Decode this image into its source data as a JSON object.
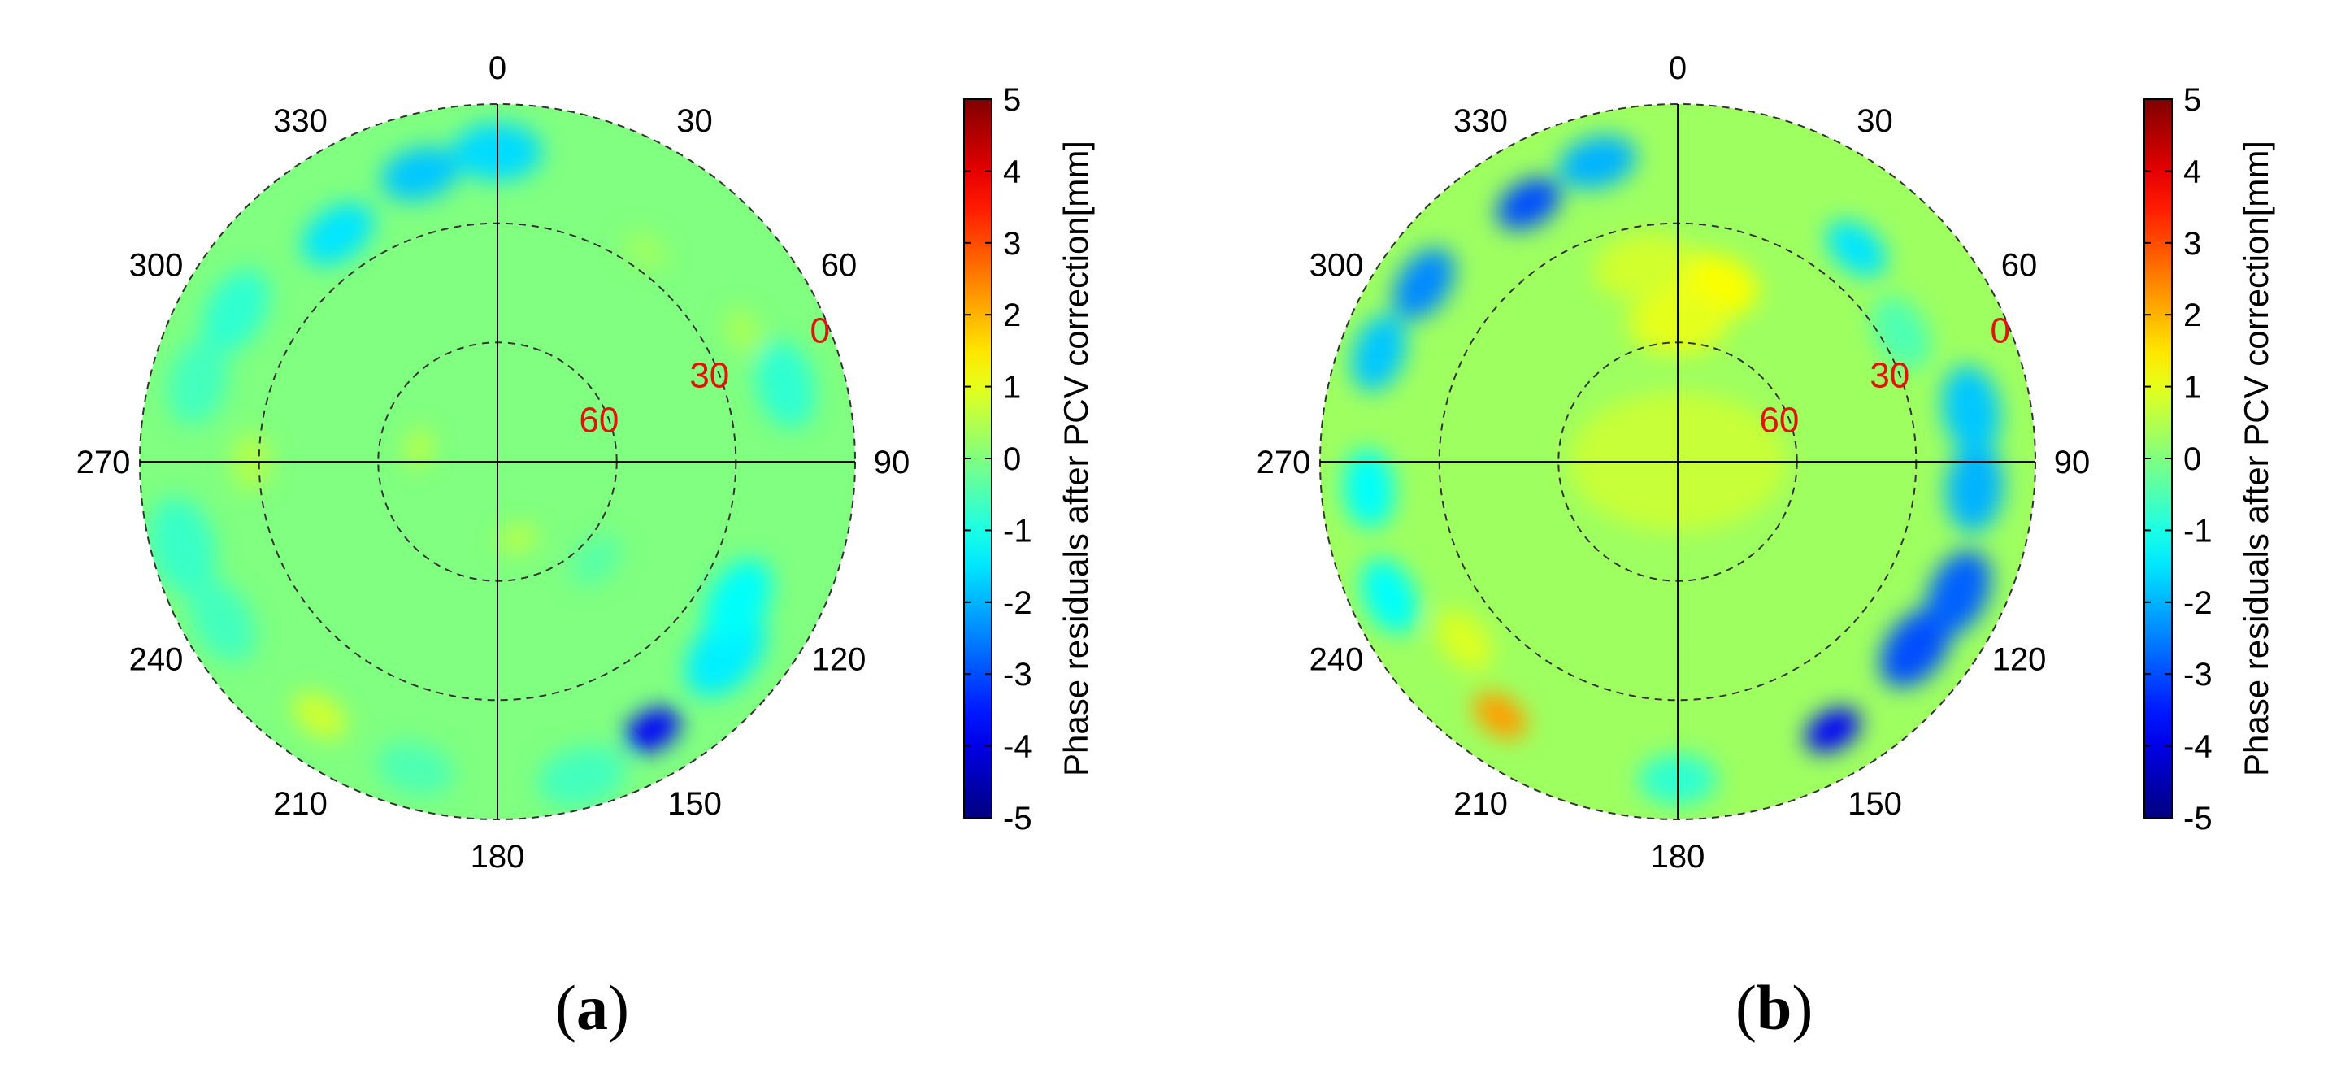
{
  "chart_data": [
    {
      "panel": "a",
      "panel_label_open": "(",
      "panel_label_letter": "a",
      "panel_label_close": ")",
      "type": "polar-contour",
      "azimuth_labels": [
        "0",
        "30",
        "60",
        "90",
        "120",
        "150",
        "180",
        "210",
        "240",
        "270",
        "300",
        "330"
      ],
      "elevation_labels": [
        "0",
        "30",
        "60"
      ],
      "elevation_rings_deg": [
        0,
        30,
        60
      ],
      "colorbar": {
        "label": "Phase residuals after PCV correction[mm]",
        "ticks": [
          "5",
          "4",
          "3",
          "2",
          "1",
          "0",
          "-1",
          "-2",
          "-3",
          "-4",
          "-5"
        ],
        "min": -5,
        "max": 5,
        "colormap": "jet"
      },
      "field_base_value": 0,
      "anomalies": [
        {
          "az": 0,
          "el": 12,
          "value": -1.6,
          "spread": 9
        },
        {
          "az": 345,
          "el": 15,
          "value": -1.8,
          "spread": 8
        },
        {
          "az": 325,
          "el": 20,
          "value": -1.5,
          "spread": 8
        },
        {
          "az": 300,
          "el": 14,
          "value": -0.8,
          "spread": 9
        },
        {
          "az": 285,
          "el": 12,
          "value": -0.6,
          "spread": 9
        },
        {
          "az": 255,
          "el": 8,
          "value": -0.7,
          "spread": 10
        },
        {
          "az": 240,
          "el": 10,
          "value": -0.6,
          "spread": 9
        },
        {
          "az": 215,
          "el": 12,
          "value": 0.8,
          "spread": 6
        },
        {
          "az": 195,
          "el": 10,
          "value": -0.5,
          "spread": 8
        },
        {
          "az": 165,
          "el": 8,
          "value": -0.6,
          "spread": 9
        },
        {
          "az": 150,
          "el": 12,
          "value": -3.8,
          "spread": 6
        },
        {
          "az": 130,
          "el": 15,
          "value": -1.4,
          "spread": 10
        },
        {
          "az": 120,
          "el": 20,
          "value": -1.2,
          "spread": 9
        },
        {
          "az": 75,
          "el": 15,
          "value": -0.8,
          "spread": 9
        },
        {
          "az": 62,
          "el": 20,
          "value": 0.4,
          "spread": 5
        },
        {
          "az": 35,
          "el": 25,
          "value": 0.3,
          "spread": 5
        },
        {
          "az": 270,
          "el": 28,
          "value": 0.5,
          "spread": 6
        },
        {
          "az": 280,
          "el": 70,
          "value": 0.6,
          "spread": 4
        },
        {
          "az": 165,
          "el": 70,
          "value": 0.6,
          "spread": 4
        },
        {
          "az": 135,
          "el": 55,
          "value": -0.4,
          "spread": 6
        }
      ]
    },
    {
      "panel": "b",
      "panel_label_open": "(",
      "panel_label_letter": "b",
      "panel_label_close": ")",
      "type": "polar-contour",
      "azimuth_labels": [
        "0",
        "30",
        "60",
        "90",
        "120",
        "150",
        "180",
        "210",
        "240",
        "270",
        "300",
        "330"
      ],
      "elevation_labels": [
        "0",
        "30",
        "60"
      ],
      "elevation_rings_deg": [
        0,
        30,
        60
      ],
      "colorbar": {
        "label": "Phase residuals after PCV correction[mm]",
        "ticks": [
          "5",
          "4",
          "3",
          "2",
          "1",
          "0",
          "-1",
          "-2",
          "-3",
          "-4",
          "-5"
        ],
        "min": -5,
        "max": 5,
        "colormap": "jet"
      },
      "field_base_value": 0.3,
      "anomalies": [
        {
          "az": 0,
          "el": 90,
          "value": 0.7,
          "spread": 22
        },
        {
          "az": 10,
          "el": 45,
          "value": 1.2,
          "spread": 10
        },
        {
          "az": 0,
          "el": 55,
          "value": 1.0,
          "spread": 10
        },
        {
          "az": 350,
          "el": 40,
          "value": 0.8,
          "spread": 10
        },
        {
          "az": 345,
          "el": 12,
          "value": -2.0,
          "spread": 8
        },
        {
          "az": 330,
          "el": 15,
          "value": -3.0,
          "spread": 7
        },
        {
          "az": 305,
          "el": 12,
          "value": -2.4,
          "spread": 8
        },
        {
          "az": 290,
          "el": 10,
          "value": -1.8,
          "spread": 8
        },
        {
          "az": 265,
          "el": 12,
          "value": -1.2,
          "spread": 8
        },
        {
          "az": 245,
          "el": 10,
          "value": -1.2,
          "spread": 8
        },
        {
          "az": 230,
          "el": 20,
          "value": 0.9,
          "spread": 7
        },
        {
          "az": 215,
          "el": 12,
          "value": 2.2,
          "spread": 6
        },
        {
          "az": 150,
          "el": 12,
          "value": -3.8,
          "spread": 6
        },
        {
          "az": 128,
          "el": 14,
          "value": -3.0,
          "spread": 9
        },
        {
          "az": 115,
          "el": 12,
          "value": -2.8,
          "spread": 9
        },
        {
          "az": 95,
          "el": 15,
          "value": -2.0,
          "spread": 9
        },
        {
          "az": 80,
          "el": 15,
          "value": -1.8,
          "spread": 9
        },
        {
          "az": 40,
          "el": 20,
          "value": -1.5,
          "spread": 7
        },
        {
          "az": 60,
          "el": 25,
          "value": -0.5,
          "spread": 8
        },
        {
          "az": 180,
          "el": 35,
          "value": 0.3,
          "spread": 8
        },
        {
          "az": 180,
          "el": 10,
          "value": -0.8,
          "spread": 8
        }
      ]
    }
  ]
}
